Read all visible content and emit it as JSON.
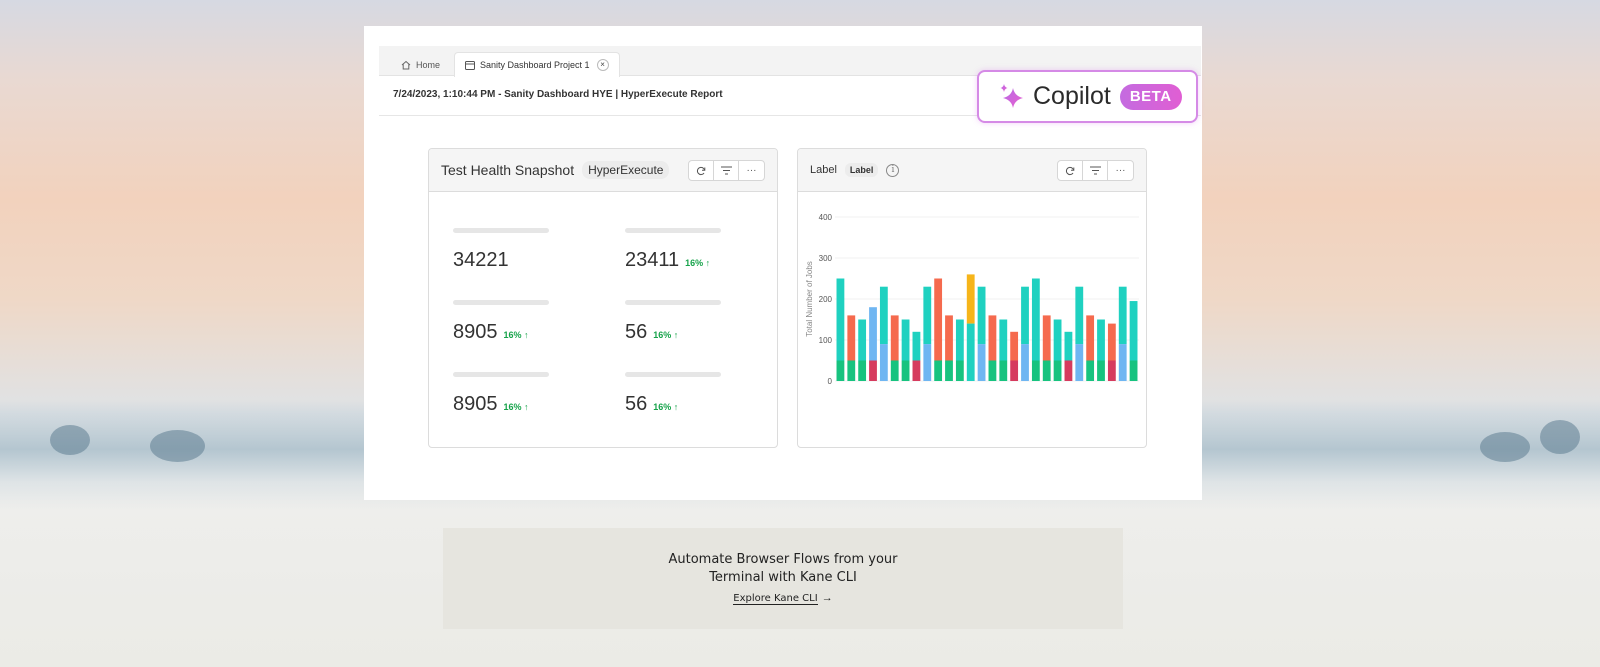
{
  "tabs": [
    {
      "label": "Home",
      "icon": "home-icon"
    },
    {
      "label": "Sanity Dashboard Project 1",
      "icon": "dashboard-icon",
      "close": "×"
    }
  ],
  "report_title": "7/24/2023, 1:10:44 PM - Sanity Dashboard HYE | HyperExecute Report",
  "copilot": {
    "label": "Copilot",
    "badge": "BETA",
    "icon": "sparkle-icon"
  },
  "snapshot": {
    "title": "Test Health Snapshot",
    "chip": "HyperExecute",
    "metrics": [
      {
        "value": "34221",
        "change": ""
      },
      {
        "value": "23411",
        "change": "16%",
        "arrow": "↑"
      },
      {
        "value": "8905",
        "change": "16%",
        "arrow": "↑"
      },
      {
        "value": "56",
        "change": "16%",
        "arrow": "↑"
      },
      {
        "value": "8905",
        "change": "16%",
        "arrow": "↑"
      },
      {
        "value": "56",
        "change": "16%",
        "arrow": "↑"
      }
    ]
  },
  "chart_card": {
    "title": "Label",
    "chip": "Label",
    "info": "i"
  },
  "card_actions": {
    "more": "···"
  },
  "chart_data": {
    "type": "bar",
    "ylabel": "Total Number of Jobs",
    "ylim": [
      0,
      400
    ],
    "yticks": [
      0,
      100,
      200,
      300,
      400
    ],
    "colors": {
      "teal": "#1fd1c0",
      "green": "#17c37f",
      "red": "#f56a4e",
      "blue": "#6fb6f2",
      "crimson": "#d63b5e",
      "orange": "#f6b51a"
    },
    "bars": [
      {
        "total": 250,
        "base": 50,
        "top": "teal",
        "bottom": "green"
      },
      {
        "total": 160,
        "base": 50,
        "top": "red",
        "bottom": "green"
      },
      {
        "total": 150,
        "base": 50,
        "top": "teal",
        "bottom": "green"
      },
      {
        "total": 180,
        "base": 50,
        "top": "blue",
        "bottom": "crimson"
      },
      {
        "total": 230,
        "base": 90,
        "top": "teal",
        "bottom": "blue"
      },
      {
        "total": 160,
        "base": 50,
        "top": "red",
        "bottom": "green"
      },
      {
        "total": 150,
        "base": 50,
        "top": "teal",
        "bottom": "green"
      },
      {
        "total": 120,
        "base": 50,
        "top": "teal",
        "bottom": "crimson"
      },
      {
        "total": 230,
        "base": 90,
        "top": "teal",
        "bottom": "blue"
      },
      {
        "total": 250,
        "base": 50,
        "top": "red",
        "bottom": "green"
      },
      {
        "total": 160,
        "base": 50,
        "top": "red",
        "bottom": "green"
      },
      {
        "total": 150,
        "base": 50,
        "top": "teal",
        "bottom": "green"
      },
      {
        "total": 260,
        "base": 140,
        "top": "orange",
        "bottom": "teal"
      },
      {
        "total": 230,
        "base": 90,
        "top": "teal",
        "bottom": "blue"
      },
      {
        "total": 160,
        "base": 50,
        "top": "red",
        "bottom": "green"
      },
      {
        "total": 150,
        "base": 50,
        "top": "teal",
        "bottom": "green"
      },
      {
        "total": 120,
        "base": 50,
        "top": "red",
        "bottom": "crimson"
      },
      {
        "total": 230,
        "base": 90,
        "top": "teal",
        "bottom": "blue"
      },
      {
        "total": 250,
        "base": 50,
        "top": "teal",
        "bottom": "green"
      },
      {
        "total": 160,
        "base": 50,
        "top": "red",
        "bottom": "green"
      },
      {
        "total": 150,
        "base": 50,
        "top": "teal",
        "bottom": "green"
      },
      {
        "total": 120,
        "base": 50,
        "top": "teal",
        "bottom": "crimson"
      },
      {
        "total": 230,
        "base": 90,
        "top": "teal",
        "bottom": "blue"
      },
      {
        "total": 160,
        "base": 50,
        "top": "red",
        "bottom": "green"
      },
      {
        "total": 150,
        "base": 50,
        "top": "teal",
        "bottom": "green"
      },
      {
        "total": 140,
        "base": 50,
        "top": "red",
        "bottom": "crimson"
      },
      {
        "total": 230,
        "base": 90,
        "top": "teal",
        "bottom": "blue"
      },
      {
        "total": 195,
        "base": 50,
        "top": "teal",
        "bottom": "green"
      }
    ]
  },
  "footer": {
    "line1": "Automate Browser Flows from your",
    "line2": "Terminal with Kane CLI",
    "link": "Explore Kane CLI",
    "arrow": "→"
  }
}
